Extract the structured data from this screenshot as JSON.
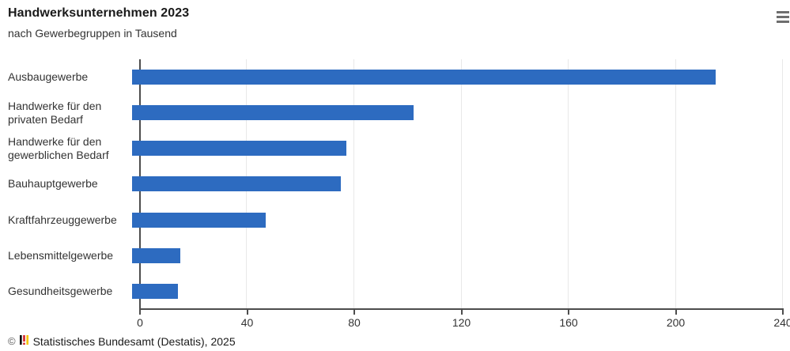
{
  "header": {
    "title": "Handwerksunternehmen 2023",
    "subtitle": "nach Gewerbegruppen in Tausend",
    "menu_icon": "hamburger-menu-icon"
  },
  "chart_data": {
    "type": "bar",
    "orientation": "horizontal",
    "title": "Handwerksunternehmen 2023",
    "subtitle": "nach Gewerbegruppen in Tausend",
    "unit": "Tausend",
    "categories": [
      "Ausbaugewerbe",
      "Handwerke für den privaten Bedarf",
      "Handwerke für den gewerblichen Bedarf",
      "Bauhauptgewerbe",
      "Kraftfahrzeuggewerbe",
      "Lebensmittelgewerbe",
      "Gesundheitsgewerbe"
    ],
    "values": [
      218,
      105,
      80,
      78,
      50,
      18,
      17
    ],
    "xlabel": "",
    "ylabel": "",
    "xlim": [
      0,
      240
    ],
    "xticks": [
      0,
      40,
      80,
      120,
      160,
      200,
      240
    ],
    "grid": true,
    "legend": "none"
  },
  "colors": {
    "bar": "#2d6bc0",
    "axis": "#4d4d4d",
    "grid": "#e8e8e8",
    "text": "#333333",
    "title": "#1a1a1a",
    "logo_black": "#000000",
    "logo_red": "#d2232a",
    "logo_yellow": "#f5c400"
  },
  "footer": {
    "copyright": "©",
    "source": "Statistisches Bundesamt (Destatis), 2025",
    "logo": "destatis-logo"
  }
}
